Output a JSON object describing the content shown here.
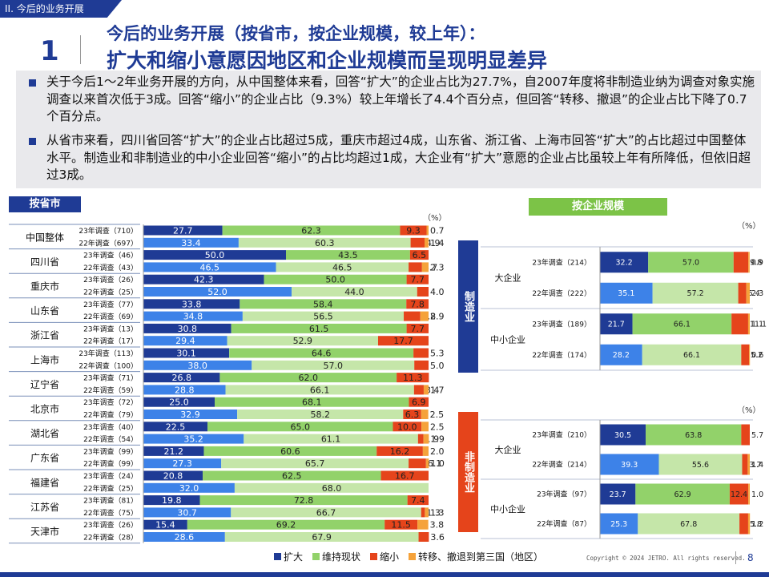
{
  "section_tab": "II. 今后的业务开展",
  "header": {
    "number": "1",
    "subtitle": "今后的业务开展（按省市，按企业规模，较上年）：",
    "title": "扩大和缩小意愿因地区和企业规模而呈现明显差异"
  },
  "summary": [
    "关于今后1～2年业务开展的方向，从中国整体来看，回答“扩大”的企业占比为27.7%，自2007年度将非制造业纳为调查对象实施调查以来首次低于3成。回答“缩小”的企业占比（9.3%）较上年增长了4.4个百分点，但回答“转移、撤退”的企业占比下降了0.7个百分点。",
    "从省市来看，四川省回答“扩大”的企业占比超过5成，重庆市超过4成，山东省、浙江省、上海市回答“扩大”的占比超过中国整体水平。制造业和非制造业的中小企业回答“缩小”的占比均超过1成，大企业有“扩大”意愿的企业占比虽较上年有所降低，但依旧超过3成。"
  ],
  "labels": {
    "by_province": "按省市",
    "by_size": "按企业规模",
    "pct_unit": "（%）",
    "manufacturing": "制造业",
    "non_manufacturing": "非制造业"
  },
  "colors": {
    "expand": "#1f3b95",
    "maintain": "#92d26a",
    "maintain_prev": "#c5e6a9",
    "shrink": "#e5441b",
    "withdraw": "#f5a23a",
    "expand_prev": "#3d82e8"
  },
  "legend": [
    {
      "label": "扩大",
      "color": "#1f3b95"
    },
    {
      "label": "维持现状",
      "color": "#92d26a"
    },
    {
      "label": "缩小",
      "color": "#e5441b"
    },
    {
      "label": "转移、撤退到第三国（地区）",
      "color": "#f5a23a"
    }
  ],
  "chart_data": [
    {
      "type": "bar",
      "orientation": "horizontal",
      "stacked": true,
      "xlim": [
        0,
        100
      ],
      "series_names": [
        "扩大",
        "维持现状",
        "缩小",
        "转移、撤退到第三国（地区）"
      ],
      "groups": [
        {
          "name": "中国整体",
          "rows": [
            {
              "label": "23年调查（710）",
              "values": [
                27.7,
                62.3,
                9.3,
                0.7
              ]
            },
            {
              "label": "22年调查（697）",
              "values": [
                33.4,
                60.3,
                4.9,
                1.4
              ]
            }
          ]
        },
        {
          "name": "四川省",
          "rows": [
            {
              "label": "23年调查（46）",
              "values": [
                50.0,
                43.5,
                6.5,
                0
              ]
            },
            {
              "label": "22年调查（43）",
              "values": [
                46.5,
                46.5,
                4.7,
                2.3
              ]
            }
          ]
        },
        {
          "name": "重庆市",
          "rows": [
            {
              "label": "23年调查（26）",
              "values": [
                42.3,
                50.0,
                7.7,
                0
              ]
            },
            {
              "label": "22年调查（25）",
              "values": [
                52.0,
                44.0,
                4.0,
                0
              ]
            }
          ]
        },
        {
          "name": "山东省",
          "rows": [
            {
              "label": "23年调查（77）",
              "values": [
                33.8,
                58.4,
                7.8,
                0
              ]
            },
            {
              "label": "22年调查（69）",
              "values": [
                34.8,
                56.5,
                5.8,
                2.9
              ]
            }
          ]
        },
        {
          "name": "浙江省",
          "rows": [
            {
              "label": "23年调查（13）",
              "values": [
                30.8,
                61.5,
                7.7,
                0
              ]
            },
            {
              "label": "22年调查（17）",
              "values": [
                29.4,
                52.9,
                17.7,
                0
              ]
            }
          ]
        },
        {
          "name": "上海市",
          "rows": [
            {
              "label": "23年调查（113）",
              "values": [
                30.1,
                64.6,
                5.3,
                0
              ]
            },
            {
              "label": "22年调查（100）",
              "values": [
                38.0,
                57.0,
                5.0,
                0
              ]
            }
          ]
        },
        {
          "name": "辽宁省",
          "rows": [
            {
              "label": "23年调查（71）",
              "values": [
                26.8,
                62.0,
                11.3,
                0
              ]
            },
            {
              "label": "22年调查（59）",
              "values": [
                28.8,
                66.1,
                3.4,
                1.7
              ]
            }
          ]
        },
        {
          "name": "北京市",
          "rows": [
            {
              "label": "23年调查（72）",
              "values": [
                25.0,
                68.1,
                6.9,
                0
              ]
            },
            {
              "label": "22年调查（79）",
              "values": [
                32.9,
                58.2,
                6.3,
                2.5
              ]
            }
          ]
        },
        {
          "name": "湖北省",
          "rows": [
            {
              "label": "23年调查（40）",
              "values": [
                22.5,
                65.0,
                10.0,
                2.5
              ]
            },
            {
              "label": "22年调查（54）",
              "values": [
                35.2,
                61.1,
                1.9,
                1.9
              ]
            }
          ]
        },
        {
          "name": "广东省",
          "rows": [
            {
              "label": "23年调查（99）",
              "values": [
                21.2,
                60.6,
                16.2,
                2.0
              ]
            },
            {
              "label": "22年调查（99）",
              "values": [
                27.3,
                65.7,
                6.1,
                1.0
              ]
            }
          ]
        },
        {
          "name": "福建省",
          "rows": [
            {
              "label": "23年调查（24）",
              "values": [
                20.8,
                62.5,
                16.7,
                0
              ]
            },
            {
              "label": "22年调查（25）",
              "values": [
                32.0,
                68.0,
                0,
                0
              ]
            }
          ]
        },
        {
          "name": "江苏省",
          "rows": [
            {
              "label": "23年调查（81）",
              "values": [
                19.8,
                72.8,
                7.4,
                0
              ]
            },
            {
              "label": "22年调查（75）",
              "values": [
                30.7,
                66.7,
                1.3,
                1.3
              ]
            }
          ]
        },
        {
          "name": "天津市",
          "rows": [
            {
              "label": "23年调查（26）",
              "values": [
                15.4,
                69.2,
                11.5,
                3.8
              ]
            },
            {
              "label": "22年调查（28）",
              "values": [
                28.6,
                67.9,
                3.6,
                0
              ]
            }
          ]
        }
      ]
    },
    {
      "type": "bar",
      "orientation": "horizontal",
      "stacked": true,
      "xlim": [
        0,
        100
      ],
      "title": "制造业",
      "groups": [
        {
          "name": "大企业",
          "rows": [
            {
              "label": "23年调查（214）",
              "values": [
                32.2,
                57.0,
                9.8,
                0.9
              ]
            },
            {
              "label": "22年调查（222）",
              "values": [
                35.1,
                57.2,
                5.4,
                2.3
              ]
            }
          ]
        },
        {
          "name": "中小企业",
          "rows": [
            {
              "label": "23年调查（189）",
              "values": [
                21.7,
                66.1,
                11.1,
                1.1
              ]
            },
            {
              "label": "22年调查（174）",
              "values": [
                28.2,
                66.1,
                5.2,
                0.6
              ]
            }
          ]
        }
      ]
    },
    {
      "type": "bar",
      "orientation": "horizontal",
      "stacked": true,
      "xlim": [
        0,
        100
      ],
      "title": "非制造业",
      "groups": [
        {
          "name": "大企业",
          "rows": [
            {
              "label": "23年调查（210）",
              "values": [
                30.5,
                63.8,
                5.7,
                0
              ]
            },
            {
              "label": "22年调查（214）",
              "values": [
                39.3,
                55.6,
                3.7,
                1.4
              ]
            }
          ]
        },
        {
          "name": "中小企业",
          "rows": [
            {
              "label": "23年调查（97）",
              "values": [
                23.7,
                62.9,
                12.4,
                1.0
              ]
            },
            {
              "label": "22年调查（87）",
              "values": [
                25.3,
                67.8,
                5.8,
                1.2
              ]
            }
          ]
        }
      ]
    }
  ],
  "footer": {
    "copyright": "Copyright © 2024 JETRO. All rights reserved.",
    "page": "8"
  }
}
